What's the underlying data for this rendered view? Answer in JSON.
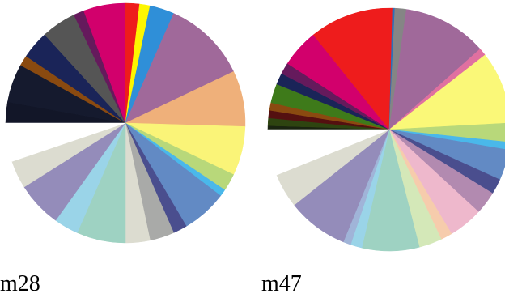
{
  "chart_data": [
    {
      "type": "pie",
      "title": "m28",
      "start_angle": 180,
      "direction": "clockwise",
      "slices": [
        {
          "value": 3.0,
          "color": "#121628"
        },
        {
          "value": 5.5,
          "color": "#151a2e"
        },
        {
          "value": 1.5,
          "color": "#8a4a10"
        },
        {
          "value": 4.0,
          "color": "#1a2458"
        },
        {
          "value": 5.0,
          "color": "#555555"
        },
        {
          "value": 1.5,
          "color": "#651a5c"
        },
        {
          "value": 6.0,
          "color": "#d2006c"
        },
        {
          "value": 2.0,
          "color": "#ee1c1c"
        },
        {
          "value": 1.5,
          "color": "#fdf600"
        },
        {
          "value": 3.5,
          "color": "#2f8fd8"
        },
        {
          "value": 12.0,
          "color": "#a0699a"
        },
        {
          "value": 8.0,
          "color": "#efb07a"
        },
        {
          "value": 7.0,
          "color": "#faf478"
        },
        {
          "value": 2.5,
          "color": "#b8d87a"
        },
        {
          "value": 1.0,
          "color": "#4ab8ea"
        },
        {
          "value": 6.5,
          "color": "#628ac4"
        },
        {
          "value": 2.0,
          "color": "#4a4e8e"
        },
        {
          "value": 3.5,
          "color": "#a9aaa8"
        },
        {
          "value": 3.5,
          "color": "#dcdcd0"
        },
        {
          "value": 7.0,
          "color": "#9ed2c2"
        },
        {
          "value": 3.5,
          "color": "#9ad4e8"
        },
        {
          "value": 6.5,
          "color": "#948cba"
        },
        {
          "value": 4.0,
          "color": "#dcdcd0"
        },
        {
          "value": 5.5,
          "color": "#ffffff"
        }
      ]
    },
    {
      "type": "pie",
      "title": "m47",
      "start_angle": 180,
      "direction": "clockwise",
      "slices": [
        {
          "value": 0.5,
          "color": "#1a2410"
        },
        {
          "value": 1.0,
          "color": "#2e4410"
        },
        {
          "value": 1.0,
          "color": "#541010"
        },
        {
          "value": 1.0,
          "color": "#8a4a10"
        },
        {
          "value": 2.5,
          "color": "#3e7a1a"
        },
        {
          "value": 1.5,
          "color": "#1a2458"
        },
        {
          "value": 1.5,
          "color": "#651a5c"
        },
        {
          "value": 5.0,
          "color": "#d2006c"
        },
        {
          "value": 11.0,
          "color": "#ee1c1c"
        },
        {
          "value": 0.3,
          "color": "#2f6fb8"
        },
        {
          "value": 1.5,
          "color": "#858585"
        },
        {
          "value": 11.0,
          "color": "#a0699a"
        },
        {
          "value": 1.0,
          "color": "#e070a0"
        },
        {
          "value": 9.5,
          "color": "#faf878"
        },
        {
          "value": 2.5,
          "color": "#b8d87a"
        },
        {
          "value": 1.0,
          "color": "#4ab8ea"
        },
        {
          "value": 4.0,
          "color": "#628ac4"
        },
        {
          "value": 2.0,
          "color": "#4a4e8e"
        },
        {
          "value": 3.0,
          "color": "#b28ab0"
        },
        {
          "value": 4.5,
          "color": "#eeb8cc"
        },
        {
          "value": 1.5,
          "color": "#f6ccac"
        },
        {
          "value": 3.0,
          "color": "#d4e8b8"
        },
        {
          "value": 7.5,
          "color": "#9ed2c2"
        },
        {
          "value": 1.5,
          "color": "#9ad4e8"
        },
        {
          "value": 1.0,
          "color": "#a0b4d8"
        },
        {
          "value": 8.0,
          "color": "#948cba"
        },
        {
          "value": 4.5,
          "color": "#dcdcd0"
        },
        {
          "value": 6.0,
          "color": "#ffffff"
        }
      ]
    }
  ]
}
